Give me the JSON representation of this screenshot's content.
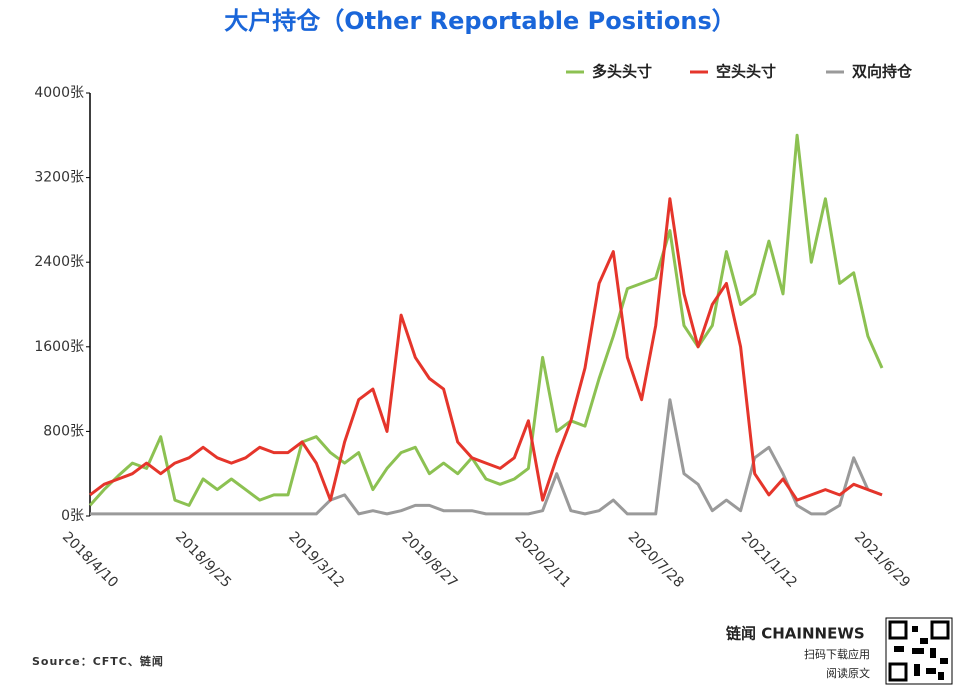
{
  "chart_data": {
    "type": "line",
    "title": "大户持仓（Other Reportable Positions）",
    "source": "Source：CFTC、链闻",
    "categories": [
      "2018/4/10",
      null,
      null,
      null,
      null,
      null,
      null,
      null,
      "2018/9/25",
      null,
      null,
      null,
      null,
      null,
      null,
      null,
      "2019/3/12",
      null,
      null,
      null,
      null,
      null,
      null,
      null,
      "2019/8/27",
      null,
      null,
      null,
      null,
      null,
      null,
      null,
      "2020/2/11",
      null,
      null,
      null,
      null,
      null,
      null,
      null,
      "2020/7/28",
      null,
      null,
      null,
      null,
      null,
      null,
      null,
      "2021/1/12",
      null,
      null,
      null,
      null,
      null,
      null,
      null,
      "2021/6/29"
    ],
    "series": [
      {
        "name": "多头头寸",
        "color": "#8cc152",
        "values": [
          100,
          250,
          380,
          500,
          450,
          750,
          150,
          100,
          350,
          250,
          350,
          250,
          150,
          200,
          200,
          700,
          750,
          600,
          500,
          600,
          250,
          450,
          600,
          650,
          400,
          500,
          400,
          550,
          350,
          300,
          350,
          450,
          1500,
          800,
          900,
          850,
          1300,
          1700,
          2150,
          2200,
          2250,
          2700,
          1800,
          1600,
          1800,
          2500,
          2000,
          2100,
          2600,
          2100,
          3600,
          2400,
          3000,
          2200,
          2300,
          1700,
          1400
        ]
      },
      {
        "name": "空头头寸",
        "color": "#e5352b",
        "values": [
          200,
          300,
          350,
          400,
          500,
          400,
          500,
          550,
          650,
          550,
          500,
          550,
          650,
          600,
          600,
          700,
          500,
          150,
          700,
          1100,
          1200,
          800,
          1900,
          1500,
          1300,
          1200,
          700,
          550,
          500,
          450,
          550,
          900,
          150,
          550,
          900,
          1400,
          2200,
          2500,
          1500,
          1100,
          1800,
          3000,
          2100,
          1600,
          2000,
          2200,
          1600,
          400,
          200,
          350,
          150,
          200,
          250,
          200,
          300,
          250,
          200
        ]
      },
      {
        "name": "双向持仓",
        "color": "#9a9a9a",
        "values": [
          20,
          20,
          20,
          20,
          20,
          20,
          20,
          20,
          20,
          20,
          20,
          20,
          20,
          20,
          20,
          20,
          20,
          150,
          200,
          20,
          50,
          20,
          50,
          100,
          100,
          50,
          50,
          50,
          20,
          20,
          20,
          20,
          50,
          400,
          50,
          20,
          50,
          150,
          20,
          20,
          20,
          1100,
          400,
          300,
          50,
          150,
          50,
          550,
          650,
          400,
          100,
          20,
          20,
          100,
          550,
          250,
          200
        ]
      }
    ],
    "ylim": [
      0,
      4000
    ],
    "yticks": [
      {
        "value": 0,
        "label": "0张"
      },
      {
        "value": 800,
        "label": "800张"
      },
      {
        "value": 1600,
        "label": "1600张"
      },
      {
        "value": 2400,
        "label": "2400张"
      },
      {
        "value": 3200,
        "label": "3200张"
      },
      {
        "value": 4000,
        "label": "4000张"
      }
    ],
    "legend": "top-right",
    "grid": false
  },
  "footer": {
    "brand": "链闻 CHAINNEWS",
    "line1": "扫码下载应用",
    "line2": "阅读原文"
  }
}
